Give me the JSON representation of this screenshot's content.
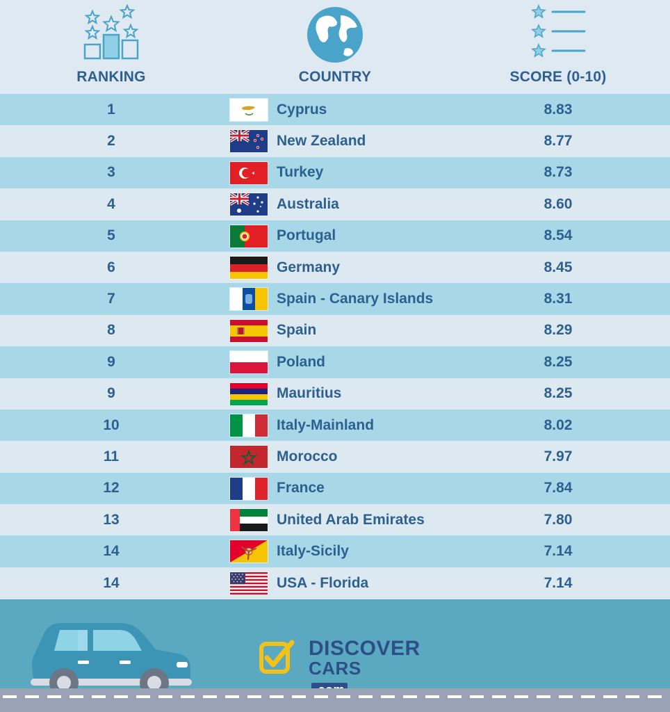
{
  "header": {
    "ranking_label": "RANKING",
    "country_label": "COUNTRY",
    "score_label": "SCORE (0-10)",
    "icons": [
      "podium-stars-icon",
      "globe-icon",
      "star-list-icon"
    ]
  },
  "rows": [
    {
      "rank": "1",
      "country": "Cyprus",
      "score": "8.83",
      "flag": "cyprus"
    },
    {
      "rank": "2",
      "country": "New Zealand",
      "score": "8.77",
      "flag": "new-zealand"
    },
    {
      "rank": "3",
      "country": "Turkey",
      "score": "8.73",
      "flag": "turkey"
    },
    {
      "rank": "4",
      "country": "Australia",
      "score": "8.60",
      "flag": "australia"
    },
    {
      "rank": "5",
      "country": "Portugal",
      "score": "8.54",
      "flag": "portugal"
    },
    {
      "rank": "6",
      "country": "Germany",
      "score": "8.45",
      "flag": "germany"
    },
    {
      "rank": "7",
      "country": "Spain - Canary Islands",
      "score": "8.31",
      "flag": "canary-islands"
    },
    {
      "rank": "8",
      "country": "Spain",
      "score": "8.29",
      "flag": "spain"
    },
    {
      "rank": "9",
      "country": "Poland",
      "score": "8.25",
      "flag": "poland"
    },
    {
      "rank": "9",
      "country": "Mauritius",
      "score": "8.25",
      "flag": "mauritius"
    },
    {
      "rank": "10",
      "country": "Italy-Mainland",
      "score": "8.02",
      "flag": "italy"
    },
    {
      "rank": "11",
      "country": "Morocco",
      "score": "7.97",
      "flag": "morocco"
    },
    {
      "rank": "12",
      "country": "France",
      "score": "7.84",
      "flag": "france"
    },
    {
      "rank": "13",
      "country": "United Arab Emirates",
      "score": "7.80",
      "flag": "uae"
    },
    {
      "rank": "14",
      "country": "Italy-Sicily",
      "score": "7.14",
      "flag": "sicily"
    },
    {
      "rank": "14",
      "country": "USA - Florida",
      "score": "7.14",
      "flag": "usa"
    }
  ],
  "footer": {
    "logo_line1": "DISCOVER",
    "logo_line2": "CARS",
    "logo_suffix": ".com",
    "icons": [
      "car-icon",
      "checkbox-logo-icon"
    ]
  },
  "colors": {
    "accent": "#2d5f8f",
    "row_odd": "#a8d8e8",
    "row_even": "#dde9f1",
    "footer_bg": "#5ba9c0",
    "logo_yellow": "#f2c21b"
  }
}
